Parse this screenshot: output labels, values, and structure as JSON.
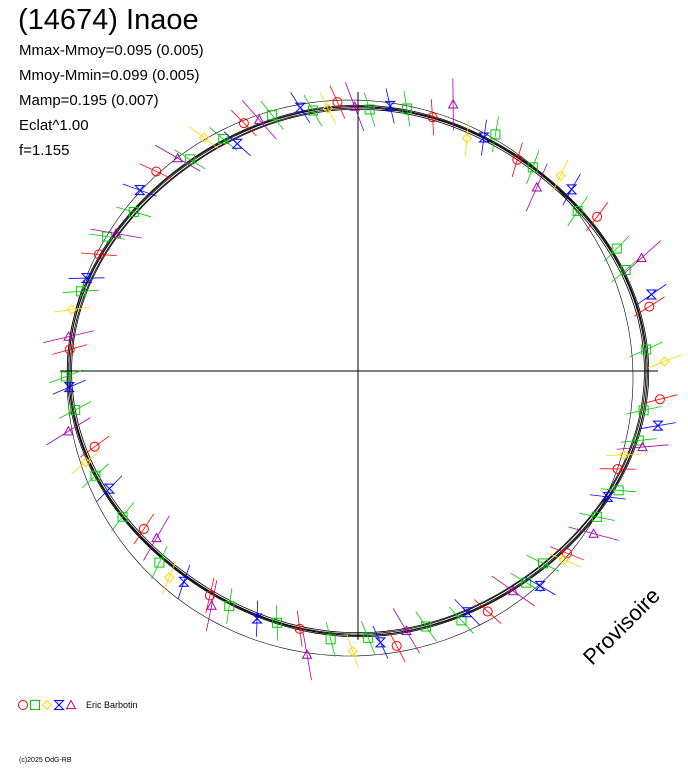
{
  "header": {
    "title": "(14674) Inaoe",
    "mmax_mmoy": "Mmax-Mmoy=0.095 (0.005)",
    "mmoy_mmin": "Mmoy-Mmin=0.099 (0.005)",
    "mamp": "Mamp=0.195 (0.007)",
    "eclat": "Eclat^1.00",
    "f": "f=1.155"
  },
  "watermark": "Provisoire",
  "legend": {
    "observer": "Eric Barbotin",
    "symbols": [
      {
        "shape": "circle",
        "color": "#ff0000"
      },
      {
        "shape": "square",
        "color": "#00cc00"
      },
      {
        "shape": "diamond",
        "color": "#ffd700"
      },
      {
        "shape": "hourglass",
        "color": "#0000ff"
      },
      {
        "shape": "triangle",
        "color": "#aa00aa"
      }
    ]
  },
  "copyright": "(c)2025 OdG-RB",
  "chart_data": {
    "type": "scatter",
    "projection": "polar lightcurve (angle = rotational phase, radius = magnitude)",
    "amplitude": 0.195,
    "period_factor": 1.155,
    "grid": "crosshair axes only",
    "series": [
      {
        "color": "#ff0000",
        "marker": "circle",
        "points": [
          [
            0.035,
            1.04
          ],
          [
            0.092,
            1.03
          ],
          [
            0.148,
            0.99
          ],
          [
            0.205,
            1.0
          ],
          [
            0.262,
            1.02
          ],
          [
            0.318,
            1.03
          ],
          [
            0.375,
            1.05
          ],
          [
            0.432,
            1.01
          ],
          [
            0.488,
            1.0
          ],
          [
            0.545,
            0.96
          ],
          [
            0.602,
            0.97
          ],
          [
            0.658,
            1.01
          ],
          [
            0.715,
            1.0
          ],
          [
            0.772,
            1.05
          ],
          [
            0.828,
            1.03
          ],
          [
            0.885,
            1.02
          ],
          [
            0.942,
            0.98
          ],
          [
            0.985,
            1.05
          ]
        ]
      },
      {
        "color": "#00cc00",
        "marker": "square",
        "points": [
          [
            0.012,
            1.0
          ],
          [
            0.058,
            1.01
          ],
          [
            0.071,
            1.02
          ],
          [
            0.101,
            0.99
          ],
          [
            0.138,
            1.0
          ],
          [
            0.167,
            1.03
          ],
          [
            0.221,
            1.01
          ],
          [
            0.243,
            0.99
          ],
          [
            0.277,
            1.0
          ],
          [
            0.301,
            1.02
          ],
          [
            0.333,
            1.01
          ],
          [
            0.356,
            1.01
          ],
          [
            0.401,
            1.0
          ],
          [
            0.421,
            1.02
          ],
          [
            0.455,
            1.01
          ],
          [
            0.503,
            1.01
          ],
          [
            0.522,
            0.99
          ],
          [
            0.561,
            1.0
          ],
          [
            0.589,
            1.0
          ],
          [
            0.623,
            1.02
          ],
          [
            0.671,
            1.01
          ],
          [
            0.701,
            1.0
          ],
          [
            0.734,
            1.02
          ],
          [
            0.756,
            1.01
          ],
          [
            0.791,
            1.0
          ],
          [
            0.812,
            1.02
          ],
          [
            0.856,
            1.01
          ],
          [
            0.871,
            0.99
          ],
          [
            0.912,
            1.01
          ],
          [
            0.931,
            1.02
          ],
          [
            0.961,
            1.01
          ],
          [
            0.978,
            1.0
          ]
        ]
      },
      {
        "color": "#ffd700",
        "marker": "diamond",
        "points": [
          [
            0.005,
            1.06
          ],
          [
            0.123,
            1.04
          ],
          [
            0.181,
            0.97
          ],
          [
            0.268,
            1.0
          ],
          [
            0.342,
            1.05
          ],
          [
            0.466,
            1.02
          ],
          [
            0.552,
            1.01
          ],
          [
            0.633,
            1.04
          ],
          [
            0.747,
            1.06
          ],
          [
            0.881,
            1.03
          ],
          [
            0.951,
            0.98
          ]
        ]
      },
      {
        "color": "#0000ff",
        "marker": "hourglass",
        "points": [
          [
            0.041,
            1.06
          ],
          [
            0.113,
            1.03
          ],
          [
            0.172,
            1.0
          ],
          [
            0.231,
            1.01
          ],
          [
            0.284,
            1.02
          ],
          [
            0.327,
            0.97
          ],
          [
            0.389,
            1.04
          ],
          [
            0.447,
            1.01
          ],
          [
            0.509,
            1.0
          ],
          [
            0.571,
            0.98
          ],
          [
            0.641,
            1.02
          ],
          [
            0.689,
            1.01
          ],
          [
            0.763,
            1.03
          ],
          [
            0.817,
            1.0
          ],
          [
            0.861,
            1.05
          ],
          [
            0.925,
            1.0
          ],
          [
            0.971,
            1.06
          ]
        ]
      },
      {
        "color": "#aa00aa",
        "marker": "triangle",
        "points": [
          [
            0.061,
            1.08
          ],
          [
            0.128,
            0.95
          ],
          [
            0.196,
            1.07
          ],
          [
            0.252,
            1.0
          ],
          [
            0.309,
            1.02
          ],
          [
            0.361,
            1.04
          ],
          [
            0.417,
            1.0
          ],
          [
            0.481,
            1.01
          ],
          [
            0.533,
            1.03
          ],
          [
            0.611,
            0.96
          ],
          [
            0.662,
            1.04
          ],
          [
            0.722,
            1.09
          ],
          [
            0.779,
            1.0
          ],
          [
            0.847,
            1.01
          ],
          [
            0.903,
            1.04
          ],
          [
            0.958,
            1.03
          ]
        ]
      }
    ]
  }
}
